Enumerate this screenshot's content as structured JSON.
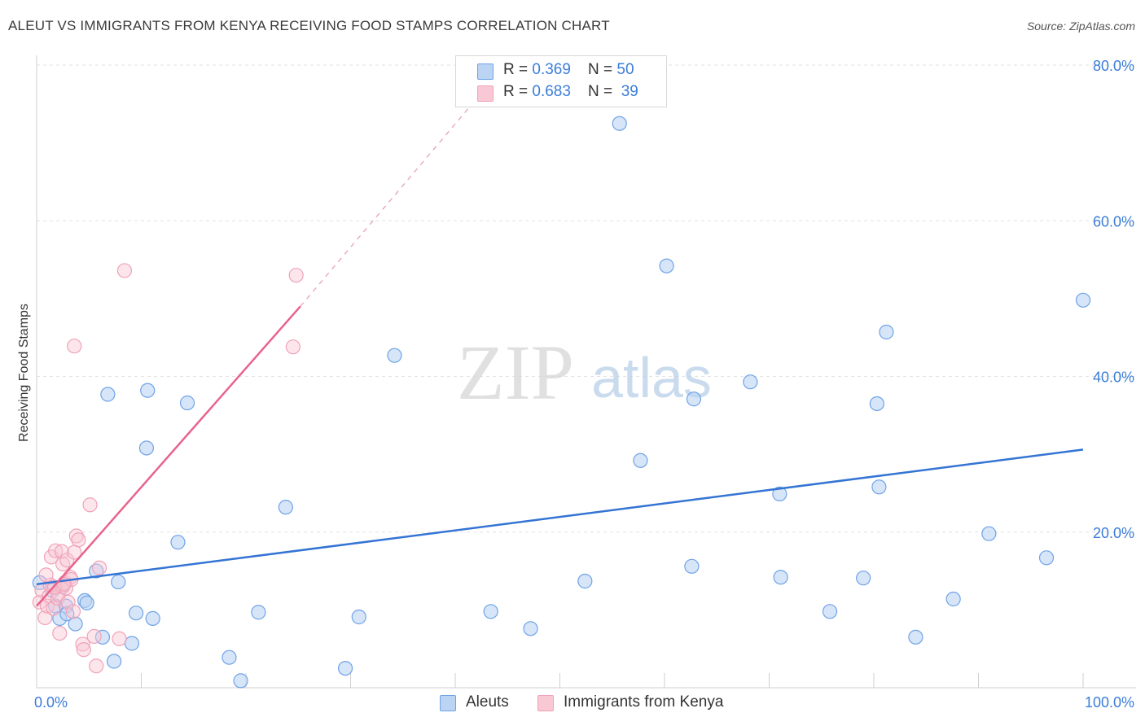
{
  "title": "ALEUT VS IMMIGRANTS FROM KENYA RECEIVING FOOD STAMPS CORRELATION CHART",
  "source": "Source: ZipAtlas.com",
  "watermark": {
    "zip": "ZIP",
    "atlas": "atlas"
  },
  "legend": {
    "rows": [
      {
        "r_label": "R = ",
        "r_value": "0.369",
        "n_label": "N = ",
        "n_value": "50"
      },
      {
        "r_label": "R = ",
        "r_value": "0.683",
        "n_label": "N = ",
        "n_value": "39"
      }
    ]
  },
  "chart_data": {
    "type": "scatter",
    "title": "ALEUT VS IMMIGRANTS FROM KENYA RECEIVING FOOD STAMPS CORRELATION CHART",
    "xlabel": "",
    "ylabel": "Receiving Food Stamps",
    "xlim": [
      0,
      100
    ],
    "ylim": [
      0,
      80
    ],
    "x_tick_labels": [
      "0.0%",
      "100.0%"
    ],
    "y_ticks": [
      20,
      40,
      60,
      80
    ],
    "y_tick_labels": [
      "20.0%",
      "40.0%",
      "60.0%",
      "80.0%"
    ],
    "grid": true,
    "colors": {
      "aleuts": "#6fa3e8",
      "kenya": "#f0a2b8",
      "aleuts_line": "#3474d4",
      "kenya_line": "#e8638c"
    },
    "series": [
      {
        "name": "Aleuts",
        "r": 0.369,
        "n": 50,
        "trend": {
          "x": [
            0,
            100
          ],
          "y": [
            13.3,
            30.6
          ]
        },
        "points": [
          [
            0.3,
            13.5
          ],
          [
            1.5,
            12.5
          ],
          [
            2.4,
            13.0
          ],
          [
            1.8,
            10.5
          ],
          [
            2.8,
            10.5
          ],
          [
            2.2,
            8.9
          ],
          [
            2.9,
            9.5
          ],
          [
            3.7,
            8.2
          ],
          [
            4.6,
            11.2
          ],
          [
            4.8,
            10.9
          ],
          [
            5.7,
            15.0
          ],
          [
            6.3,
            6.5
          ],
          [
            6.8,
            37.7
          ],
          [
            7.4,
            3.4
          ],
          [
            7.8,
            13.6
          ],
          [
            9.1,
            5.7
          ],
          [
            9.5,
            9.6
          ],
          [
            10.6,
            38.2
          ],
          [
            10.5,
            30.8
          ],
          [
            11.1,
            8.9
          ],
          [
            13.5,
            18.7
          ],
          [
            14.4,
            36.6
          ],
          [
            18.4,
            3.9
          ],
          [
            19.5,
            0.9
          ],
          [
            21.2,
            9.7
          ],
          [
            23.8,
            23.2
          ],
          [
            29.5,
            2.5
          ],
          [
            30.8,
            9.1
          ],
          [
            34.2,
            42.7
          ],
          [
            43.4,
            9.8
          ],
          [
            47.2,
            7.6
          ],
          [
            52.4,
            13.7
          ],
          [
            55.7,
            72.5
          ],
          [
            57.7,
            29.2
          ],
          [
            60.2,
            54.2
          ],
          [
            62.6,
            15.6
          ],
          [
            62.8,
            37.1
          ],
          [
            68.2,
            39.3
          ],
          [
            71.0,
            24.9
          ],
          [
            71.1,
            14.2
          ],
          [
            75.8,
            9.8
          ],
          [
            79.0,
            14.1
          ],
          [
            80.3,
            36.5
          ],
          [
            80.5,
            25.8
          ],
          [
            81.2,
            45.7
          ],
          [
            84.0,
            6.5
          ],
          [
            87.6,
            11.4
          ],
          [
            91.0,
            19.8
          ],
          [
            96.5,
            16.7
          ],
          [
            100.0,
            49.8
          ]
        ]
      },
      {
        "name": "Immigrants from Kenya",
        "r": 0.683,
        "n": 39,
        "trend": {
          "x": [
            0,
            25.2
          ],
          "y": [
            10.5,
            49.0
          ],
          "dash_to": {
            "x": 41.3,
            "y": 74.5
          }
        },
        "points": [
          [
            0.3,
            11.0
          ],
          [
            0.5,
            12.5
          ],
          [
            0.8,
            9.0
          ],
          [
            1.0,
            10.5
          ],
          [
            1.2,
            11.8
          ],
          [
            1.3,
            13.2
          ],
          [
            1.4,
            16.8
          ],
          [
            1.6,
            10.2
          ],
          [
            1.8,
            17.6
          ],
          [
            2.0,
            11.5
          ],
          [
            2.1,
            12.0
          ],
          [
            2.2,
            7.0
          ],
          [
            2.4,
            17.5
          ],
          [
            2.5,
            15.9
          ],
          [
            2.5,
            13.0
          ],
          [
            2.7,
            13.5
          ],
          [
            2.8,
            12.8
          ],
          [
            2.9,
            16.4
          ],
          [
            3.0,
            11.0
          ],
          [
            3.2,
            14.2
          ],
          [
            3.3,
            13.9
          ],
          [
            3.5,
            9.8
          ],
          [
            3.6,
            43.9
          ],
          [
            3.6,
            17.4
          ],
          [
            3.8,
            19.5
          ],
          [
            4.0,
            19.0
          ],
          [
            4.4,
            5.6
          ],
          [
            4.5,
            4.9
          ],
          [
            5.1,
            23.5
          ],
          [
            5.5,
            6.6
          ],
          [
            5.7,
            2.8
          ],
          [
            6.0,
            15.4
          ],
          [
            7.9,
            6.3
          ],
          [
            8.4,
            53.6
          ],
          [
            24.5,
            43.8
          ],
          [
            24.8,
            53.0
          ],
          [
            0.9,
            14.5
          ],
          [
            1.7,
            12.9
          ],
          [
            2.6,
            13.3
          ]
        ]
      }
    ]
  }
}
